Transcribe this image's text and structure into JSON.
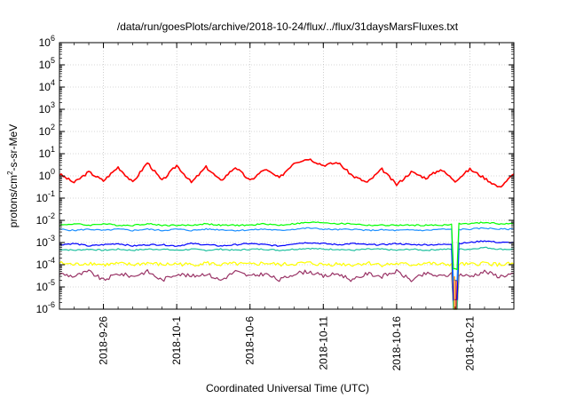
{
  "chart_data": {
    "type": "line",
    "title": "/data/run/goesPlots/archive/2018-10-24/flux/../flux/31daysMarsFluxes.txt",
    "xlabel": "Coordinated Universal Time (UTC)",
    "ylabel": {
      "base": "protons/cm",
      "sup": "2",
      "rest": "-s-sr-MeV"
    },
    "xlim": [
      "2018-09-23",
      "2018-10-24"
    ],
    "ylim": [
      1e-06,
      1000000.0
    ],
    "yscale": "log",
    "grid": true,
    "legend": "none",
    "x_ticks": [
      "2018-9-26",
      "2018-10-1",
      "2018-10-6",
      "2018-10-11",
      "2018-10-16",
      "2018-10-21"
    ],
    "x_tick_dates": [
      "2018-09-26",
      "2018-10-01",
      "2018-10-06",
      "2018-10-11",
      "2018-10-16",
      "2018-10-21"
    ],
    "y_ticks": [
      {
        "value": 1e-06,
        "base": "10",
        "exp": "-6"
      },
      {
        "value": 1e-05,
        "base": "10",
        "exp": "-5"
      },
      {
        "value": 0.0001,
        "base": "10",
        "exp": "-4"
      },
      {
        "value": 0.001,
        "base": "10",
        "exp": "-3"
      },
      {
        "value": 0.01,
        "base": "10",
        "exp": "-2"
      },
      {
        "value": 0.1,
        "base": "10",
        "exp": "-1"
      },
      {
        "value": 1,
        "base": "10",
        "exp": "0"
      },
      {
        "value": 10,
        "base": "10",
        "exp": "1"
      },
      {
        "value": 100,
        "base": "10",
        "exp": "2"
      },
      {
        "value": 1000,
        "base": "10",
        "exp": "3"
      },
      {
        "value": 10000,
        "base": "10",
        "exp": "4"
      },
      {
        "value": 100000,
        "base": "10",
        "exp": "5"
      },
      {
        "value": 1000000,
        "base": "10",
        "exp": "6"
      }
    ],
    "x": [
      "2018-09-23",
      "2018-09-24",
      "2018-09-25",
      "2018-09-26",
      "2018-09-27",
      "2018-09-28",
      "2018-09-29",
      "2018-09-30",
      "2018-10-01",
      "2018-10-02",
      "2018-10-03",
      "2018-10-04",
      "2018-10-05",
      "2018-10-06",
      "2018-10-07",
      "2018-10-08",
      "2018-10-09",
      "2018-10-10",
      "2018-10-11",
      "2018-10-12",
      "2018-10-13",
      "2018-10-14",
      "2018-10-15",
      "2018-10-16",
      "2018-10-17",
      "2018-10-18",
      "2018-10-19",
      "2018-10-20",
      "2018-10-21",
      "2018-10-22",
      "2018-10-23",
      "2018-10-24"
    ],
    "series": [
      {
        "color": "#ff0000",
        "values": [
          1.2,
          0.5,
          1.5,
          0.6,
          2.5,
          0.5,
          4.0,
          0.6,
          3.0,
          0.5,
          2.5,
          0.6,
          2.5,
          0.6,
          2.0,
          0.8,
          4.0,
          6.0,
          3.0,
          4.0,
          1.0,
          0.5,
          2.0,
          0.4,
          1.5,
          0.8,
          2.0,
          0.6,
          2.0,
          0.8,
          0.3,
          1.2
        ]
      },
      {
        "color": "#00ff00",
        "values": [
          0.006,
          0.007,
          0.006,
          0.007,
          0.006,
          0.006,
          0.007,
          0.006,
          0.006,
          0.006,
          0.007,
          0.006,
          0.006,
          0.006,
          0.007,
          0.006,
          0.007,
          0.008,
          0.008,
          0.007,
          0.007,
          0.006,
          0.006,
          0.006,
          0.006,
          0.006,
          0.006,
          0.007,
          0.007,
          0.008,
          0.007,
          0.007
        ]
      },
      {
        "color": "#1e90ff",
        "values": [
          0.004,
          0.0035,
          0.004,
          0.0035,
          0.004,
          0.0035,
          0.004,
          0.0035,
          0.004,
          0.0035,
          0.004,
          0.0038,
          0.0035,
          0.0037,
          0.004,
          0.0035,
          0.004,
          0.0045,
          0.004,
          0.0038,
          0.004,
          0.0035,
          0.0037,
          0.0035,
          0.0037,
          0.0035,
          0.004,
          0.0038,
          0.004,
          0.0045,
          0.004,
          0.004
        ]
      },
      {
        "color": "#0000ff",
        "values": [
          0.0008,
          0.0009,
          0.0007,
          0.0008,
          0.0009,
          0.0007,
          0.0008,
          0.0008,
          0.0007,
          0.0009,
          0.0008,
          0.0007,
          0.0008,
          0.0009,
          0.0008,
          0.0007,
          0.0009,
          0.001,
          0.0009,
          0.0008,
          0.0009,
          0.0008,
          0.0008,
          0.0009,
          0.0008,
          0.0008,
          0.0008,
          0.0009,
          0.001,
          0.0012,
          0.001,
          0.001
        ]
      },
      {
        "color": "#20c0a0",
        "values": [
          0.0005,
          0.00045,
          0.0005,
          0.00045,
          0.0005,
          0.00045,
          0.0005,
          0.0005,
          0.00045,
          0.0005,
          0.00045,
          0.0005,
          0.00045,
          0.0005,
          0.0005,
          0.00045,
          0.0005,
          0.00055,
          0.0005,
          0.0005,
          0.00045,
          0.0005,
          0.0005,
          0.00045,
          0.0005,
          0.00045,
          0.0005,
          0.0005,
          0.0005,
          0.0006,
          0.0005,
          0.0005
        ]
      },
      {
        "color": "#ffff00",
        "values": [
          0.00012,
          0.0001,
          0.00012,
          0.0001,
          0.00011,
          0.0001,
          0.00012,
          0.0001,
          0.00011,
          0.0001,
          0.00012,
          0.0001,
          0.00011,
          0.0001,
          0.00012,
          0.0001,
          0.00011,
          0.00012,
          0.0001,
          0.00011,
          0.0001,
          0.00012,
          0.0001,
          0.00011,
          0.0001,
          0.00012,
          0.0001,
          0.00011,
          0.0001,
          0.00012,
          0.0001,
          0.00011
        ]
      },
      {
        "color": "#993366",
        "values": [
          4e-05,
          3e-05,
          5e-05,
          2e-05,
          4e-05,
          3e-05,
          5e-05,
          2e-05,
          4e-05,
          3e-05,
          4e-05,
          2e-05,
          5e-05,
          3e-05,
          4e-05,
          2e-05,
          4e-05,
          5e-05,
          3e-05,
          4e-05,
          2e-05,
          4e-05,
          3e-05,
          5e-05,
          2e-05,
          4e-05,
          3e-05,
          4e-05,
          3e-05,
          5e-05,
          3e-05,
          4e-05
        ]
      }
    ],
    "dropout": {
      "x": "2018-10-20",
      "series_color": "#ff8c00"
    }
  }
}
